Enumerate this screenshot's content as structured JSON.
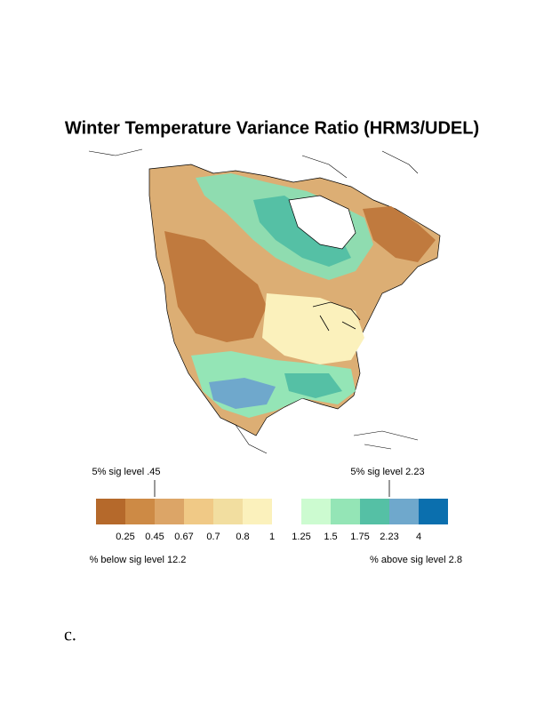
{
  "title": "Winter Temperature Variance Ratio (HRM3/UDEL)",
  "colorbar": {
    "levels": [
      0.25,
      0.45,
      0.67,
      0.7,
      0.8,
      1,
      1.25,
      1.5,
      1.75,
      2.23,
      4
    ],
    "colors": [
      "#b5692b",
      "#cd8a45",
      "#dca567",
      "#f0c986",
      "#f2dea0",
      "#fbf1bc",
      "#ffffff",
      "#ccfbd0",
      "#94e5b6",
      "#55c0a5",
      "#6fa8cc",
      "#0b6fae"
    ]
  },
  "annotations": {
    "low_sig": "5% sig level .45",
    "high_sig": "5% sig level 2.23",
    "below": "% below sig level 12.2",
    "above": "% above sig level 2.8"
  },
  "panel_label": "c."
}
